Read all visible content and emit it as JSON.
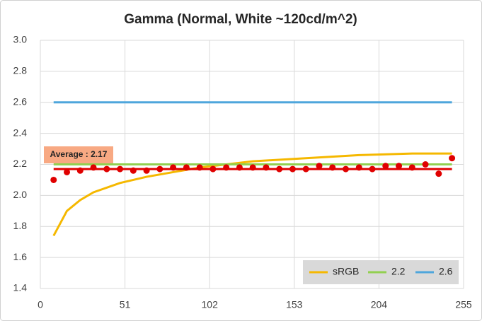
{
  "chart_data": {
    "type": "line",
    "title": "Gamma (Normal, White ~120cd/m^2)",
    "xlim": [
      0,
      255
    ],
    "xticks": [
      0,
      51,
      102,
      153,
      204,
      255
    ],
    "ylim": [
      1.4,
      3.0
    ],
    "yticks": [
      {
        "value": 1.4,
        "label": "1.4"
      },
      {
        "value": 1.6,
        "label": "1.6"
      },
      {
        "value": 1.8,
        "label": "1.8"
      },
      {
        "value": 2.0,
        "label": "2.0"
      },
      {
        "value": 2.2,
        "label": "2.2"
      },
      {
        "value": 2.4,
        "label": "2.4"
      },
      {
        "value": 2.6,
        "label": "2.6"
      },
      {
        "value": 2.8,
        "label": "2.8"
      },
      {
        "value": 3.0,
        "label": "3.0"
      }
    ],
    "grid": true,
    "legend": "bottom-right",
    "series": [
      {
        "name": "sRGB",
        "color": "#f5b800",
        "x": [
          8,
          16,
          24,
          32,
          48,
          64,
          96,
          128,
          160,
          192,
          224,
          248
        ],
        "values": [
          1.74,
          1.9,
          1.97,
          2.02,
          2.08,
          2.12,
          2.18,
          2.22,
          2.24,
          2.26,
          2.27,
          2.27
        ]
      },
      {
        "name": "2.2",
        "color": "#92d050",
        "x": [
          8,
          248
        ],
        "values": [
          2.2,
          2.2
        ]
      },
      {
        "name": "2.6",
        "color": "#4ea6dc",
        "x": [
          8,
          248
        ],
        "values": [
          2.6,
          2.6
        ]
      }
    ],
    "points": {
      "color": "#e00000",
      "x": [
        8,
        16,
        24,
        32,
        40,
        48,
        56,
        64,
        72,
        80,
        88,
        96,
        104,
        112,
        120,
        128,
        136,
        144,
        152,
        160,
        168,
        176,
        184,
        192,
        200,
        208,
        216,
        224,
        232,
        240,
        248
      ],
      "values": [
        2.1,
        2.15,
        2.16,
        2.18,
        2.17,
        2.17,
        2.16,
        2.16,
        2.17,
        2.18,
        2.18,
        2.18,
        2.17,
        2.18,
        2.18,
        2.18,
        2.18,
        2.17,
        2.17,
        2.17,
        2.19,
        2.18,
        2.17,
        2.18,
        2.17,
        2.19,
        2.19,
        2.18,
        2.2,
        2.14,
        2.24
      ]
    },
    "average": {
      "label": "Average : 2.17",
      "value": 2.17,
      "color": "#e00000"
    }
  }
}
